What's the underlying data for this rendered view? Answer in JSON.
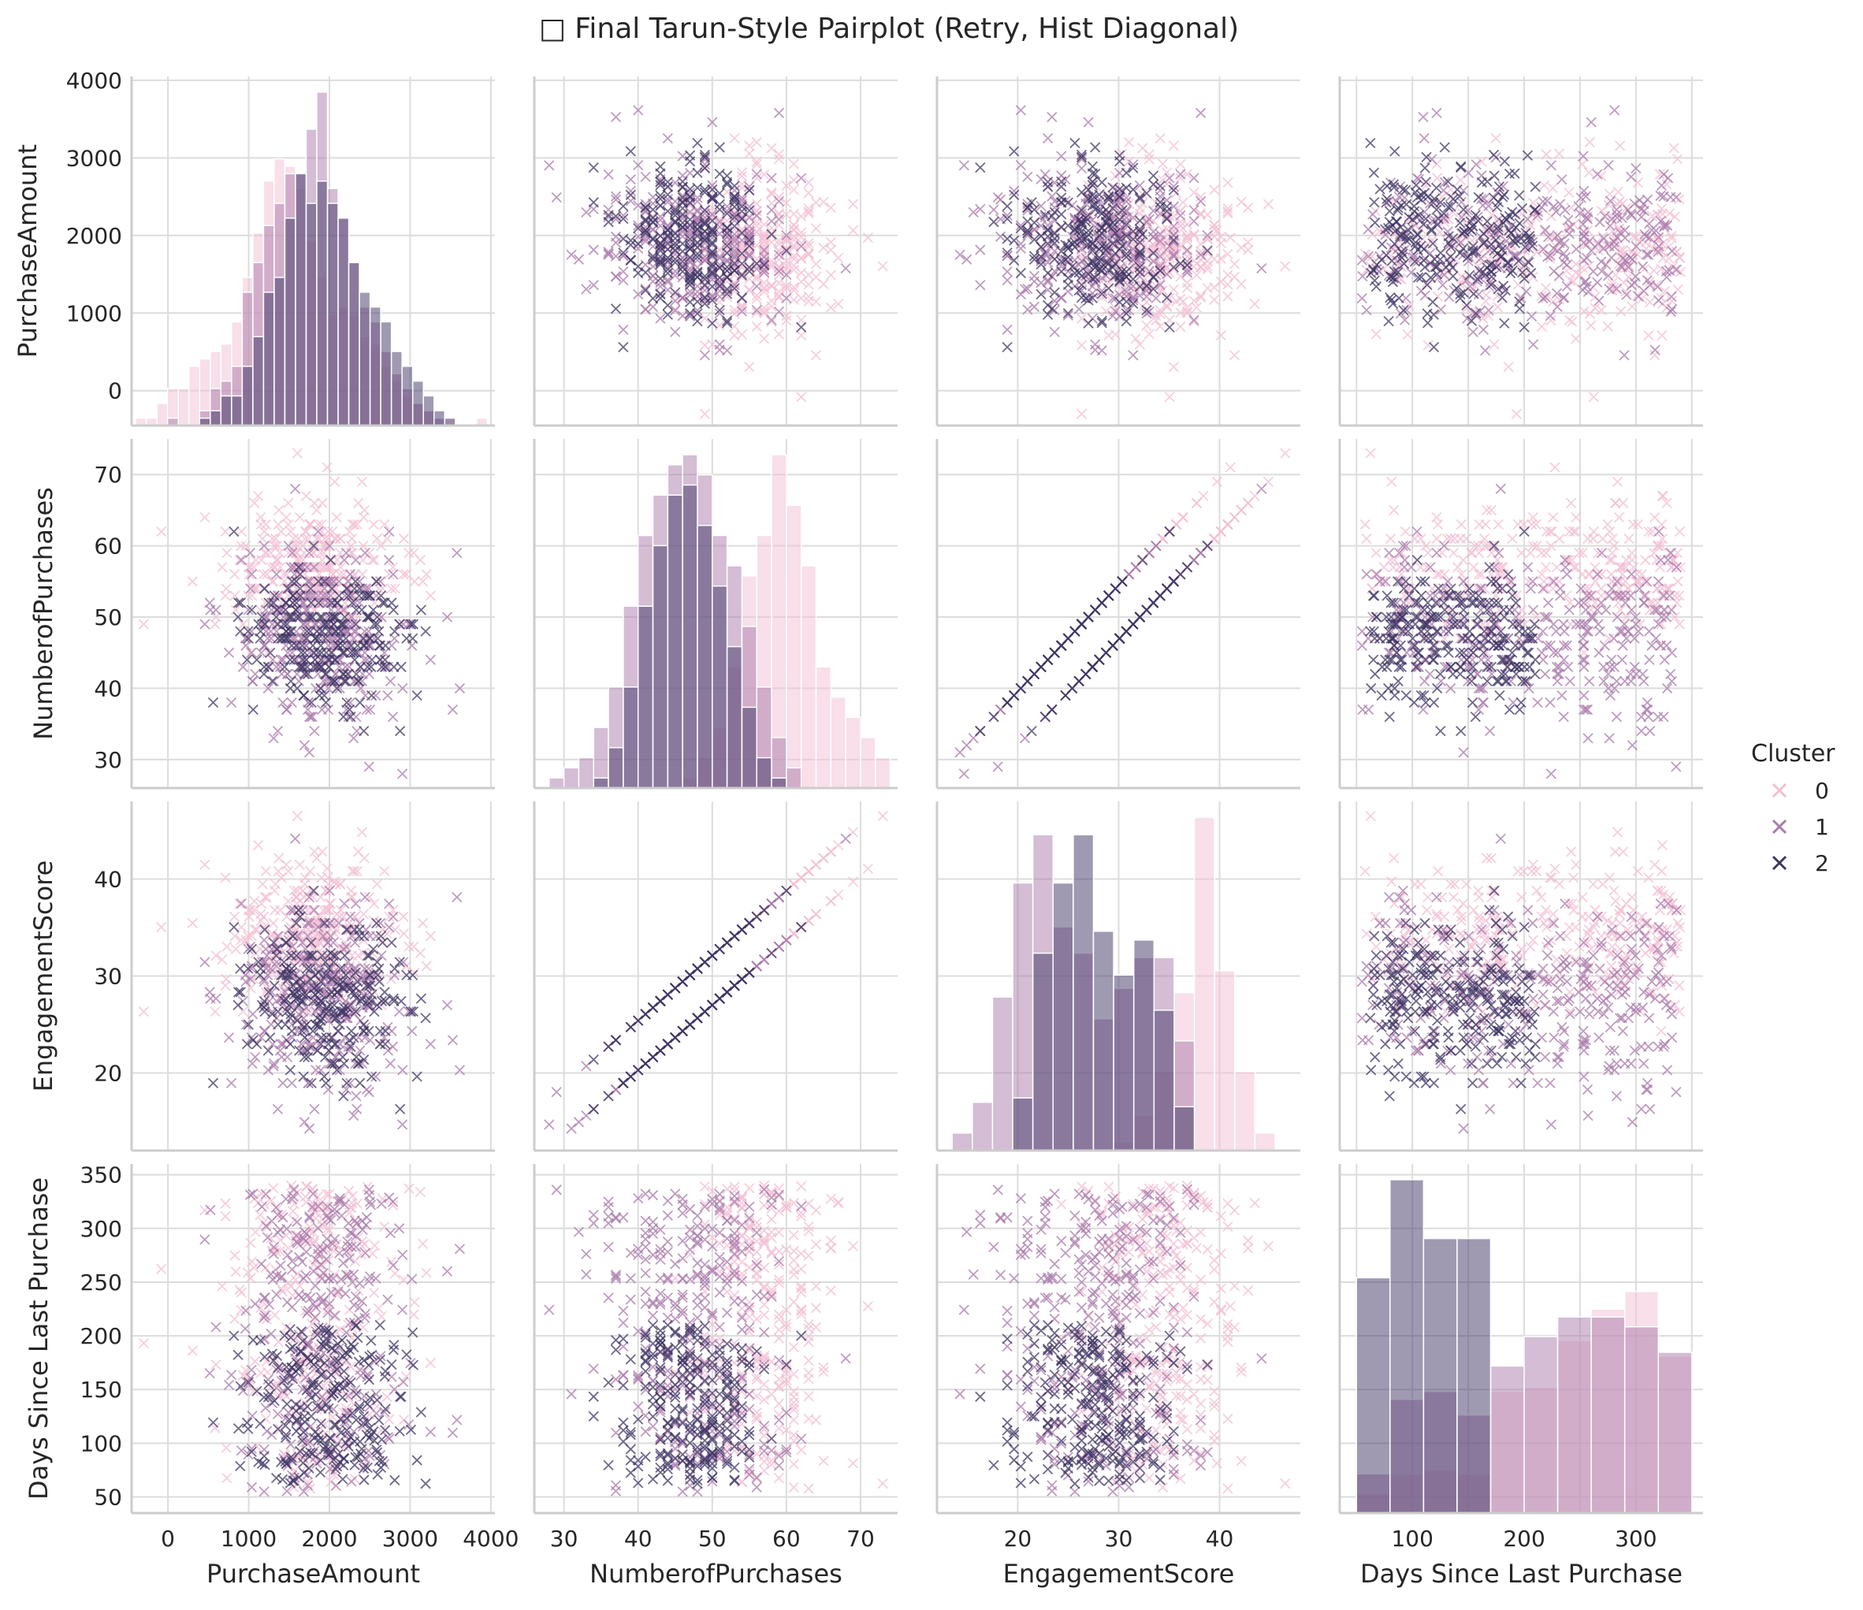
{
  "chart_data": {
    "type": "scatter",
    "title": "□ Final Tarun-Style Pairplot (Retry, Hist Diagonal)",
    "variables": [
      {
        "name": "PurchaseAmount",
        "range": [
          -450,
          4050
        ],
        "ticks": [
          0,
          1000,
          2000,
          3000,
          4000
        ],
        "ytick_labels": [
          "0",
          "1000",
          "2000",
          "3000",
          "4000"
        ],
        "xtick_labels": [
          "0",
          "1000",
          "2000",
          "3000",
          "4000"
        ]
      },
      {
        "name": "NumberofPurchases",
        "range": [
          26,
          75
        ],
        "ticks": [
          30,
          40,
          50,
          60,
          70
        ],
        "ytick_labels": [
          "30",
          "40",
          "50",
          "60",
          "70"
        ],
        "xtick_labels": [
          "30",
          "40",
          "50",
          "60",
          "70"
        ]
      },
      {
        "name": "EngagementScore",
        "range": [
          12,
          48
        ],
        "ticks": [
          20,
          30,
          40
        ],
        "ytick_labels": [
          "20",
          "30",
          "40"
        ],
        "xtick_labels": [
          "20",
          "30",
          "40"
        ]
      },
      {
        "name": "Days Since Last Purchase",
        "range": [
          35,
          360
        ],
        "ticks": [
          50,
          100,
          150,
          200,
          250,
          300,
          350
        ],
        "ytick_labels": [
          "50",
          "100",
          "150",
          "200",
          "250",
          "300",
          "350"
        ],
        "xtick_labels": [
          "",
          "100",
          "",
          "200",
          "",
          "300",
          ""
        ]
      }
    ],
    "legend": {
      "title": "Cluster",
      "placement": "right",
      "entries": [
        "0",
        "1",
        "2"
      ]
    },
    "colors": {
      "0": "#f1bfd3",
      "1": "#a97bab",
      "2": "#3f3664"
    },
    "marker": "x",
    "grid": true,
    "histograms": {
      "PurchaseAmount": {
        "edges": [
          -400,
          -268,
          -136,
          -4,
          128,
          260,
          392,
          524,
          656,
          788,
          920,
          1052,
          1184,
          1316,
          1448,
          1580,
          1712,
          1844,
          1976,
          2108,
          2240,
          2372,
          2504,
          2636,
          2768,
          2900,
          3032,
          3164,
          3296,
          3428,
          3560,
          3692,
          3824,
          3956
        ],
        "counts": {
          "0": [
            1,
            1,
            3,
            5,
            5,
            8,
            9,
            10,
            11,
            14,
            20,
            26,
            33,
            36,
            35,
            32,
            25,
            20,
            15,
            16,
            15,
            12,
            11,
            8,
            6,
            4,
            3,
            2,
            1,
            1,
            0,
            0,
            1
          ],
          "1": [
            0,
            0,
            0,
            1,
            0,
            0,
            2,
            5,
            6,
            8,
            18,
            22,
            27,
            30,
            34,
            34,
            40,
            45,
            32,
            28,
            22,
            16,
            14,
            10,
            7,
            5,
            3,
            2,
            1,
            0,
            0,
            0,
            0
          ],
          "2": [
            0,
            0,
            0,
            0,
            0,
            0,
            1,
            2,
            4,
            4,
            8,
            12,
            18,
            20,
            28,
            34,
            30,
            33,
            30,
            28,
            22,
            18,
            16,
            14,
            10,
            8,
            6,
            4,
            2,
            1,
            0,
            0,
            0
          ]
        }
      },
      "NumberofPurchases": {
        "edges": [
          28,
          30,
          32,
          34,
          36,
          38,
          40,
          42,
          44,
          46,
          48,
          50,
          52,
          54,
          56,
          58,
          60,
          62,
          64,
          66,
          68,
          70,
          72,
          74
        ],
        "counts": {
          "0": [
            0,
            0,
            0,
            0,
            0,
            0,
            0,
            0,
            0,
            2,
            6,
            12,
            24,
            42,
            50,
            66,
            56,
            44,
            24,
            18,
            14,
            10,
            6
          ],
          "1": [
            2,
            4,
            6,
            12,
            20,
            36,
            50,
            58,
            64,
            66,
            62,
            50,
            44,
            32,
            20,
            10,
            4,
            0,
            0,
            0,
            0,
            0,
            0
          ],
          "2": [
            0,
            0,
            0,
            2,
            8,
            20,
            36,
            48,
            58,
            60,
            52,
            40,
            28,
            16,
            6,
            2,
            0,
            0,
            0,
            0,
            0,
            0,
            0
          ]
        }
      },
      "EngagementScore": {
        "edges": [
          13.5,
          15.5,
          17.5,
          19.5,
          21.5,
          23.5,
          25.5,
          27.5,
          29.5,
          31.5,
          33.5,
          35.5,
          37.5,
          39.5,
          41.5,
          43.5,
          45.5
        ],
        "counts": {
          "0": [
            0,
            0,
            0,
            0,
            0,
            0,
            0,
            0,
            2,
            8,
            18,
            36,
            76,
            41,
            18,
            4,
            5
          ],
          "1": [
            4,
            11,
            35,
            61,
            72,
            51,
            45,
            30,
            37,
            44,
            44,
            25,
            0,
            0,
            0,
            0,
            0
          ],
          "2": [
            0,
            0,
            0,
            12,
            45,
            61,
            72,
            50,
            40,
            48,
            32,
            10,
            0,
            0,
            0,
            0,
            0
          ]
        }
      },
      "Days Since Last Purchase": {
        "edges": [
          50,
          80,
          110,
          140,
          170,
          200,
          230,
          260,
          290,
          320,
          350
        ],
        "counts": {
          "0": [
            10,
            20,
            22,
            20,
            62,
            64,
            88,
            104,
            113,
            80
          ],
          "1": [
            20,
            58,
            62,
            50,
            75,
            90,
            100,
            100,
            95,
            82
          ],
          "2": [
            120,
            170,
            140,
            140,
            0,
            0,
            0,
            0,
            0,
            0
          ]
        }
      }
    }
  }
}
